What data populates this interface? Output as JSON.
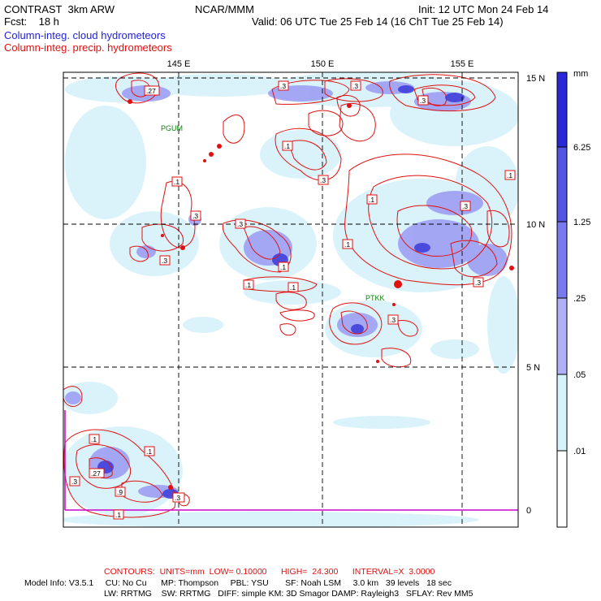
{
  "header": {
    "title": "CONTRAST  3km ARW",
    "fcst": "Fcst:    18 h",
    "center": "NCAR/MMM",
    "init": "Init: 12 UTC Mon 24 Feb 14",
    "valid": "Valid: 06 UTC Tue 25 Feb 14 (16 ChT Tue 25 Feb 14)",
    "field1": "Column-integ. cloud hydrometeors",
    "field2": "Column-integ. precip. hydrometeors"
  },
  "map": {
    "lon_labels": [
      "145 E",
      "150 E",
      "155 E"
    ],
    "lat_labels": [
      "15 N",
      "10 N",
      "5 N",
      "0"
    ],
    "stations": [
      "PGUM",
      "PTKK"
    ]
  },
  "legend": {
    "unit": "mm",
    "levels": [
      "6.25",
      "1.25",
      ".25",
      ".05",
      ".01"
    ],
    "colors": [
      "#2828d8",
      "#5454e4",
      "#7a7af0",
      "#b0b0f8",
      "#d6f2fb",
      "#ffffff"
    ]
  },
  "contour_labels": [
    ".27",
    ".3",
    ".3",
    ".1",
    ".3",
    ".1",
    ".3",
    ".1",
    ".3",
    ".3",
    ".3",
    ".1",
    ".1",
    ".3",
    ".1",
    ".1",
    ".3",
    ".1",
    ".3",
    ".1",
    ".27",
    ".9",
    ".3",
    ".1",
    ".3",
    ".1"
  ],
  "footer": {
    "contours": "CONTOURS:  UNITS=mm  LOW= 0.10000      HIGH=  24.300      INTERVAL=X  3.0000",
    "model1": "Model Info: V3.5.1     CU: No Cu      MP: Thompson     PBL: YSU       SF: Noah LSM     3.0 km   39 levels   18 sec",
    "model2": "LW: RRTMG    SW: RRTMG   DIFF: simple KM: 3D Smagor DAMP: Rayleigh3   SFLAY: Rev MM5"
  }
}
